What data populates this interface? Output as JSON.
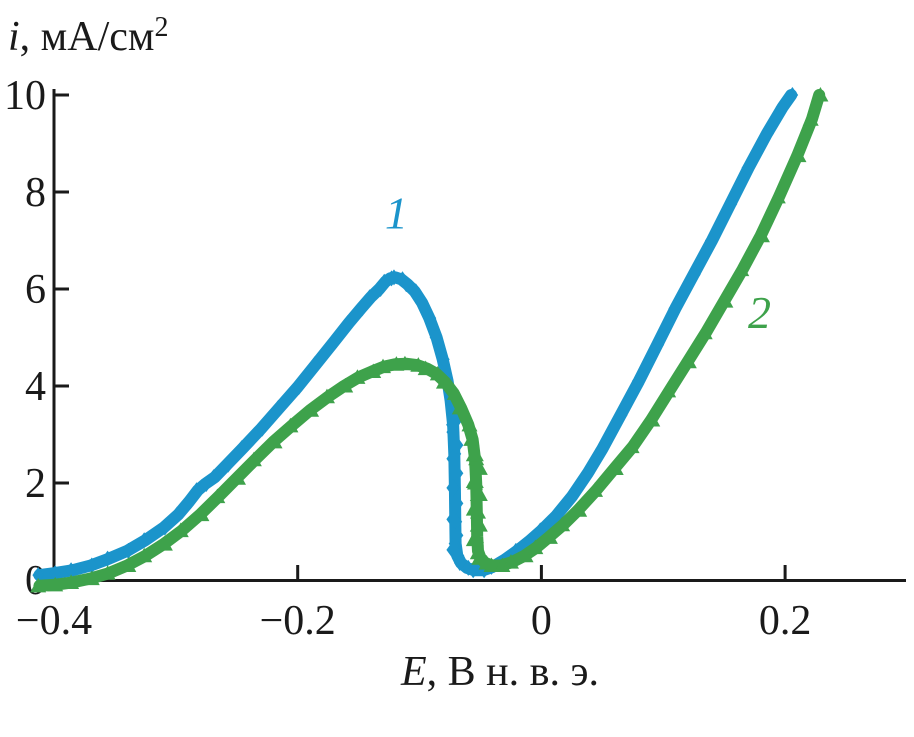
{
  "figure": {
    "ylabel": {
      "var": "i",
      "rest": ", мА/см",
      "sup": "2"
    },
    "xlabel": {
      "var": "E",
      "rest": ", В н. в. э."
    }
  },
  "chart_data": {
    "type": "line",
    "title": "",
    "xlabel": "E, В н. в. э.",
    "ylabel": "i, мА/см2",
    "xlim": [
      -0.4,
      0.2984
    ],
    "ylim": [
      0,
      10
    ],
    "grid": false,
    "legend_position": "inline-labels",
    "x_ticks": [
      {
        "value": -0.4,
        "label": "−0.4"
      },
      {
        "value": -0.2,
        "label": "−0.2"
      },
      {
        "value": 0,
        "label": "0"
      },
      {
        "value": 0.2,
        "label": "0.2"
      }
    ],
    "y_ticks": [
      {
        "value": 0,
        "label": "0"
      },
      {
        "value": 2,
        "label": "2"
      },
      {
        "value": 4,
        "label": "4"
      },
      {
        "value": 6,
        "label": "6"
      },
      {
        "value": 8,
        "label": "8"
      },
      {
        "value": 10,
        "label": "10"
      }
    ],
    "series": [
      {
        "name": "1",
        "color": "#1b94cb",
        "marker": "diamond",
        "label_pos": {
          "E": -0.119,
          "i": 7.25
        },
        "points": [
          [
            -0.412,
            0.1
          ],
          [
            -0.4,
            0.14
          ],
          [
            -0.385,
            0.2
          ],
          [
            -0.37,
            0.3
          ],
          [
            -0.355,
            0.44
          ],
          [
            -0.34,
            0.6
          ],
          [
            -0.325,
            0.82
          ],
          [
            -0.31,
            1.08
          ],
          [
            -0.298,
            1.35
          ],
          [
            -0.289,
            1.62
          ],
          [
            -0.282,
            1.85
          ],
          [
            -0.276,
            1.98
          ],
          [
            -0.268,
            2.12
          ],
          [
            -0.258,
            2.38
          ],
          [
            -0.245,
            2.72
          ],
          [
            -0.23,
            3.12
          ],
          [
            -0.215,
            3.55
          ],
          [
            -0.2,
            3.98
          ],
          [
            -0.185,
            4.45
          ],
          [
            -0.17,
            4.92
          ],
          [
            -0.158,
            5.3
          ],
          [
            -0.148,
            5.6
          ],
          [
            -0.14,
            5.83
          ],
          [
            -0.133,
            6.0
          ],
          [
            -0.128,
            6.15
          ],
          [
            -0.124,
            6.22
          ],
          [
            -0.12,
            6.24
          ],
          [
            -0.115,
            6.2
          ],
          [
            -0.11,
            6.1
          ],
          [
            -0.104,
            5.95
          ],
          [
            -0.098,
            5.72
          ],
          [
            -0.092,
            5.4
          ],
          [
            -0.086,
            5.0
          ],
          [
            -0.081,
            4.55
          ],
          [
            -0.077,
            4.1
          ],
          [
            -0.0745,
            3.7
          ],
          [
            -0.0725,
            3.2
          ],
          [
            -0.0715,
            2.6
          ],
          [
            -0.071,
            1.9
          ],
          [
            -0.0707,
            1.2
          ],
          [
            -0.0704,
            0.75
          ],
          [
            -0.069,
            0.5
          ],
          [
            -0.066,
            0.35
          ],
          [
            -0.061,
            0.25
          ],
          [
            -0.055,
            0.2
          ],
          [
            -0.048,
            0.2
          ],
          [
            -0.04,
            0.27
          ],
          [
            -0.03,
            0.42
          ],
          [
            -0.02,
            0.6
          ],
          [
            -0.01,
            0.8
          ],
          [
            0.0,
            1.02
          ],
          [
            0.012,
            1.32
          ],
          [
            0.025,
            1.72
          ],
          [
            0.038,
            2.2
          ],
          [
            0.05,
            2.7
          ],
          [
            0.065,
            3.4
          ],
          [
            0.08,
            4.1
          ],
          [
            0.095,
            4.85
          ],
          [
            0.11,
            5.6
          ],
          [
            0.125,
            6.3
          ],
          [
            0.14,
            7.0
          ],
          [
            0.155,
            7.75
          ],
          [
            0.17,
            8.5
          ],
          [
            0.185,
            9.2
          ],
          [
            0.198,
            9.75
          ],
          [
            0.205,
            10.0
          ]
        ],
        "drop_markers": {
          "E": -0.071,
          "i_values": [
            3.6,
            3.32,
            3.05,
            2.78,
            2.5,
            2.2,
            1.9,
            1.58,
            1.25,
            0.92,
            0.62
          ]
        }
      },
      {
        "name": "2",
        "color": "#3ea24b",
        "marker": "triangle-up",
        "label_pos": {
          "E": 0.179,
          "i": 5.2
        },
        "points": [
          [
            -0.412,
            -0.12
          ],
          [
            -0.4,
            -0.1
          ],
          [
            -0.385,
            -0.05
          ],
          [
            -0.37,
            0.03
          ],
          [
            -0.355,
            0.14
          ],
          [
            -0.34,
            0.3
          ],
          [
            -0.325,
            0.5
          ],
          [
            -0.31,
            0.74
          ],
          [
            -0.295,
            1.02
          ],
          [
            -0.28,
            1.35
          ],
          [
            -0.265,
            1.72
          ],
          [
            -0.25,
            2.1
          ],
          [
            -0.235,
            2.48
          ],
          [
            -0.22,
            2.85
          ],
          [
            -0.205,
            3.18
          ],
          [
            -0.19,
            3.5
          ],
          [
            -0.175,
            3.78
          ],
          [
            -0.162,
            4.0
          ],
          [
            -0.15,
            4.18
          ],
          [
            -0.139,
            4.3
          ],
          [
            -0.129,
            4.4
          ],
          [
            -0.12,
            4.45
          ],
          [
            -0.111,
            4.46
          ],
          [
            -0.102,
            4.43
          ],
          [
            -0.094,
            4.36
          ],
          [
            -0.086,
            4.25
          ],
          [
            -0.079,
            4.08
          ],
          [
            -0.072,
            3.85
          ],
          [
            -0.066,
            3.55
          ],
          [
            -0.06,
            3.2
          ],
          [
            -0.0565,
            2.9
          ],
          [
            -0.0545,
            2.5
          ],
          [
            -0.0535,
            2.0
          ],
          [
            -0.053,
            1.4
          ],
          [
            -0.0527,
            0.9
          ],
          [
            -0.052,
            0.6
          ],
          [
            -0.05,
            0.45
          ],
          [
            -0.046,
            0.35
          ],
          [
            -0.04,
            0.3
          ],
          [
            -0.033,
            0.3
          ],
          [
            -0.024,
            0.37
          ],
          [
            -0.014,
            0.5
          ],
          [
            -0.004,
            0.67
          ],
          [
            0.006,
            0.88
          ],
          [
            0.018,
            1.14
          ],
          [
            0.03,
            1.44
          ],
          [
            0.045,
            1.85
          ],
          [
            0.06,
            2.3
          ],
          [
            0.075,
            2.75
          ],
          [
            0.09,
            3.3
          ],
          [
            0.105,
            3.9
          ],
          [
            0.12,
            4.5
          ],
          [
            0.135,
            5.1
          ],
          [
            0.15,
            5.75
          ],
          [
            0.165,
            6.4
          ],
          [
            0.18,
            7.1
          ],
          [
            0.195,
            7.9
          ],
          [
            0.21,
            8.75
          ],
          [
            0.222,
            9.5
          ],
          [
            0.228,
            10.0
          ]
        ],
        "drop_markers": {
          "E": -0.053,
          "i_values": [
            2.6,
            2.32,
            2.05,
            1.78,
            1.48,
            1.15,
            0.85,
            0.58
          ]
        }
      }
    ]
  }
}
